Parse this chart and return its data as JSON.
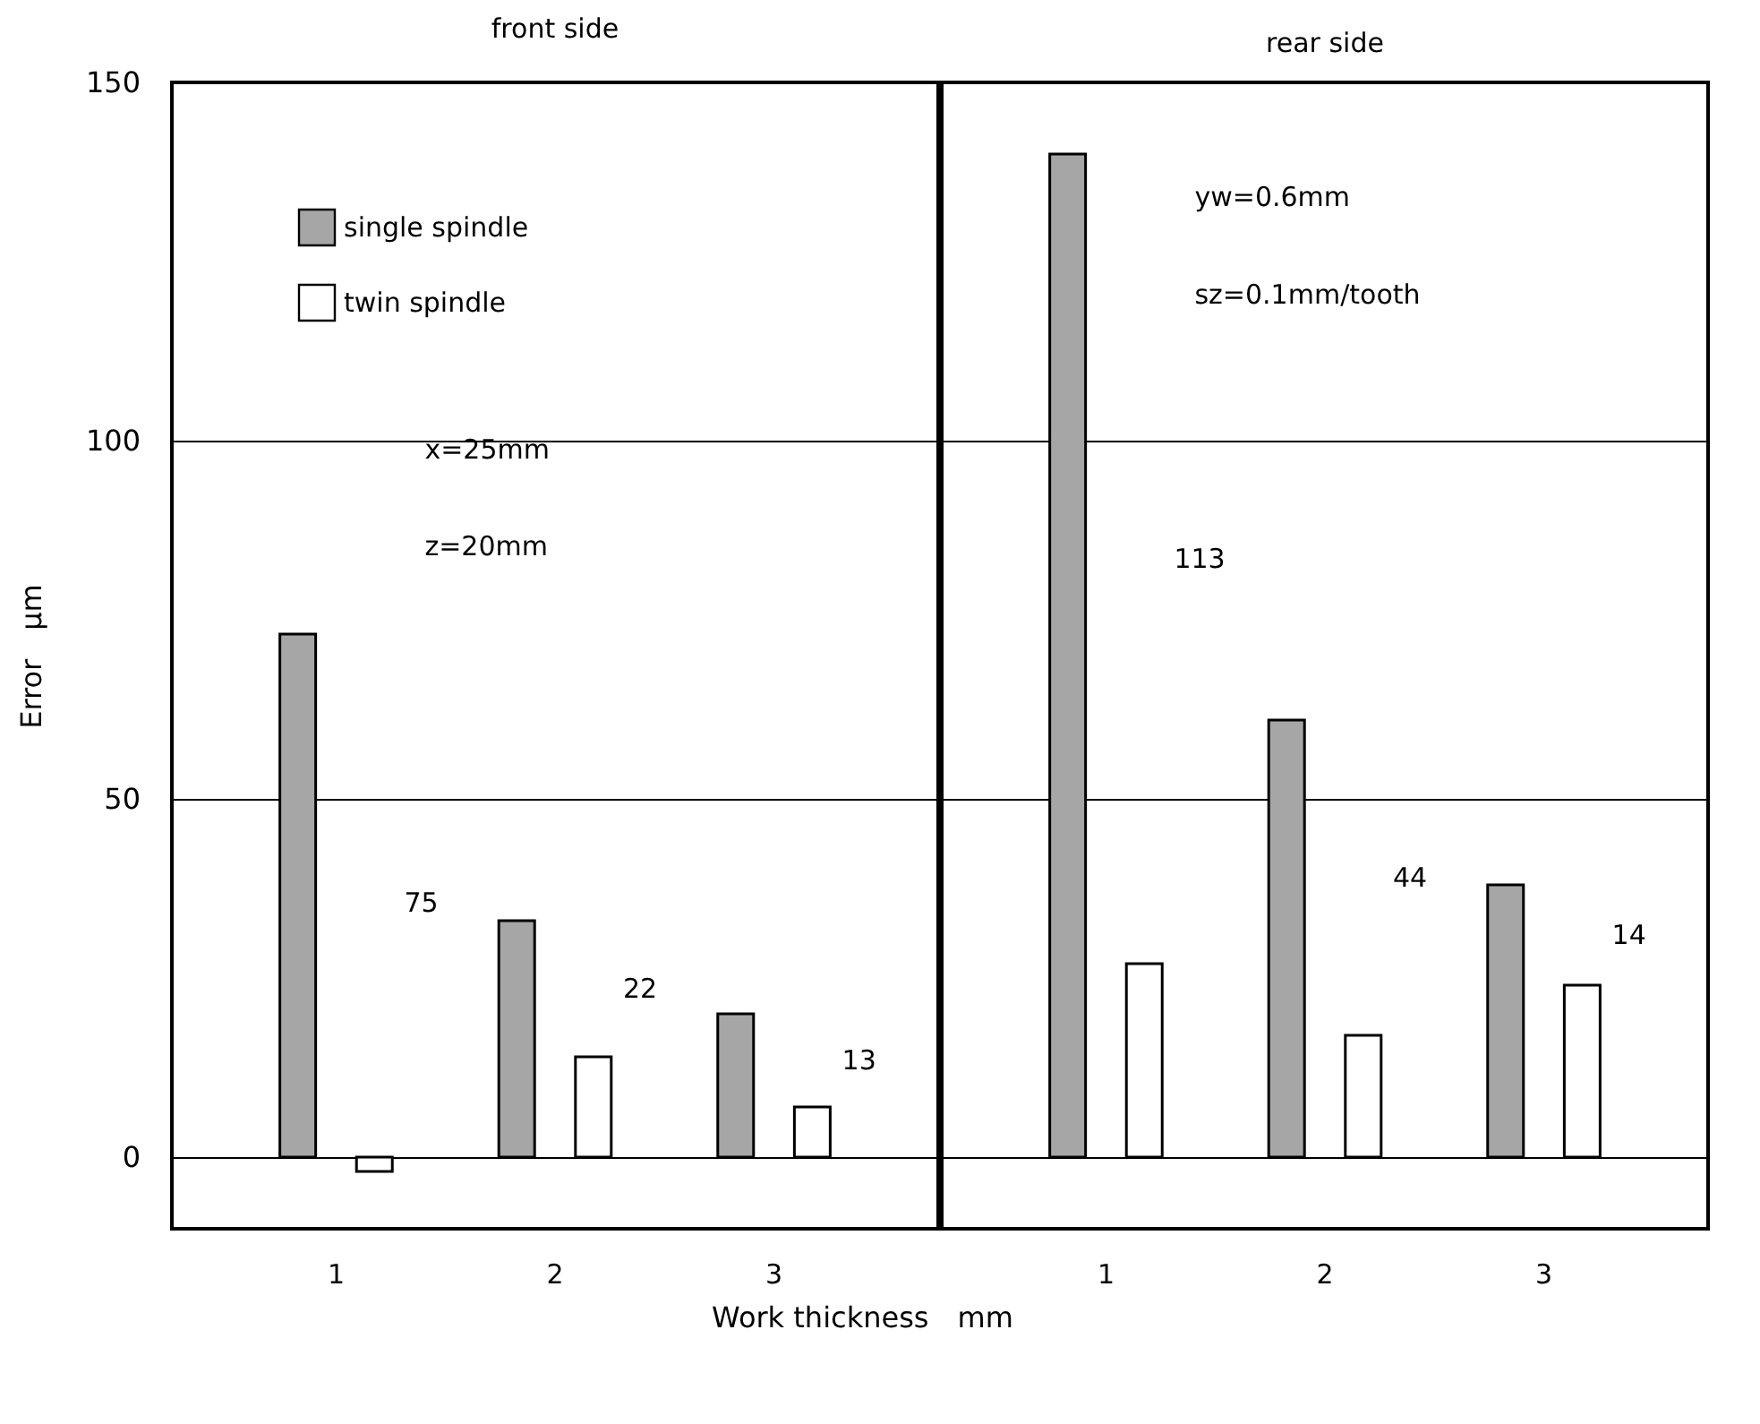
{
  "chart_data": [
    {
      "type": "bar",
      "title": "front side",
      "xlabel": "Work thickness　mm",
      "ylabel": "Error　μm",
      "categories": [
        "1",
        "2",
        "3"
      ],
      "series": [
        {
          "name": "single spindle",
          "color": "#a6a6a6",
          "values": [
            73,
            33,
            20
          ]
        },
        {
          "name": "twin spindle",
          "color": "#ffffff",
          "values": [
            -2,
            14,
            7
          ]
        }
      ],
      "ylim": [
        -10,
        150
      ],
      "yticks": [
        0,
        50,
        100,
        150
      ],
      "grid": "y",
      "legend": "top left",
      "annotations": [
        "x=25mm",
        "z=20mm",
        "75",
        "22",
        "13"
      ]
    },
    {
      "type": "bar",
      "title": "rear side",
      "categories": [
        "1",
        "2",
        "3"
      ],
      "series": [
        {
          "name": "single spindle",
          "color": "#a6a6a6",
          "values": [
            140,
            61,
            38
          ]
        },
        {
          "name": "twin spindle",
          "color": "#ffffff",
          "values": [
            27,
            17,
            24
          ]
        }
      ],
      "ylim": [
        -10,
        150
      ],
      "yticks": [
        0,
        50,
        100,
        150
      ],
      "grid": "y",
      "tick_labels": "x",
      "annotations": [
        "yw=0.6mm",
        "sz=0.1mm/tooth",
        "113",
        "44",
        "14"
      ]
    }
  ]
}
